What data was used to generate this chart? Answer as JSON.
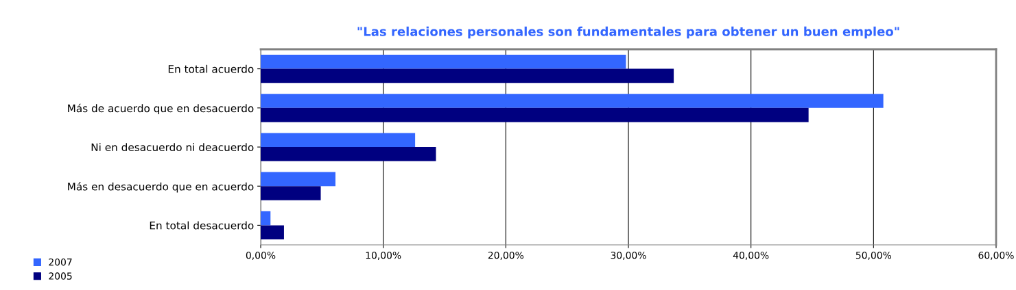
{
  "chart_data": {
    "type": "bar",
    "orientation": "horizontal",
    "title": "\"Las relaciones personales son fundamentales para obtener un buen empleo\"",
    "categories": [
      "En total acuerdo",
      "Más de acuerdo que en desacuerdo",
      "Ni en desacuerdo ni deacuerdo",
      "Más en desacuerdo que en acuerdo",
      "En total desacuerdo"
    ],
    "series": [
      {
        "name": "2007",
        "color": "#3366ff",
        "values": [
          29.8,
          50.8,
          12.6,
          6.1,
          0.8
        ]
      },
      {
        "name": "2005",
        "color": "#000080",
        "values": [
          33.7,
          44.7,
          14.3,
          4.9,
          1.9
        ]
      }
    ],
    "xlim": [
      0,
      60
    ],
    "xticks": [
      {
        "value": 0,
        "label": "0,00%"
      },
      {
        "value": 10,
        "label": "10,00%"
      },
      {
        "value": 20,
        "label": "20,00%"
      },
      {
        "value": 30,
        "label": "30,00%"
      },
      {
        "value": 40,
        "label": "40,00%"
      },
      {
        "value": 50,
        "label": "50,00%"
      },
      {
        "value": 60,
        "label": "60,00%"
      }
    ],
    "grid": "x",
    "legend": "bottom left"
  }
}
